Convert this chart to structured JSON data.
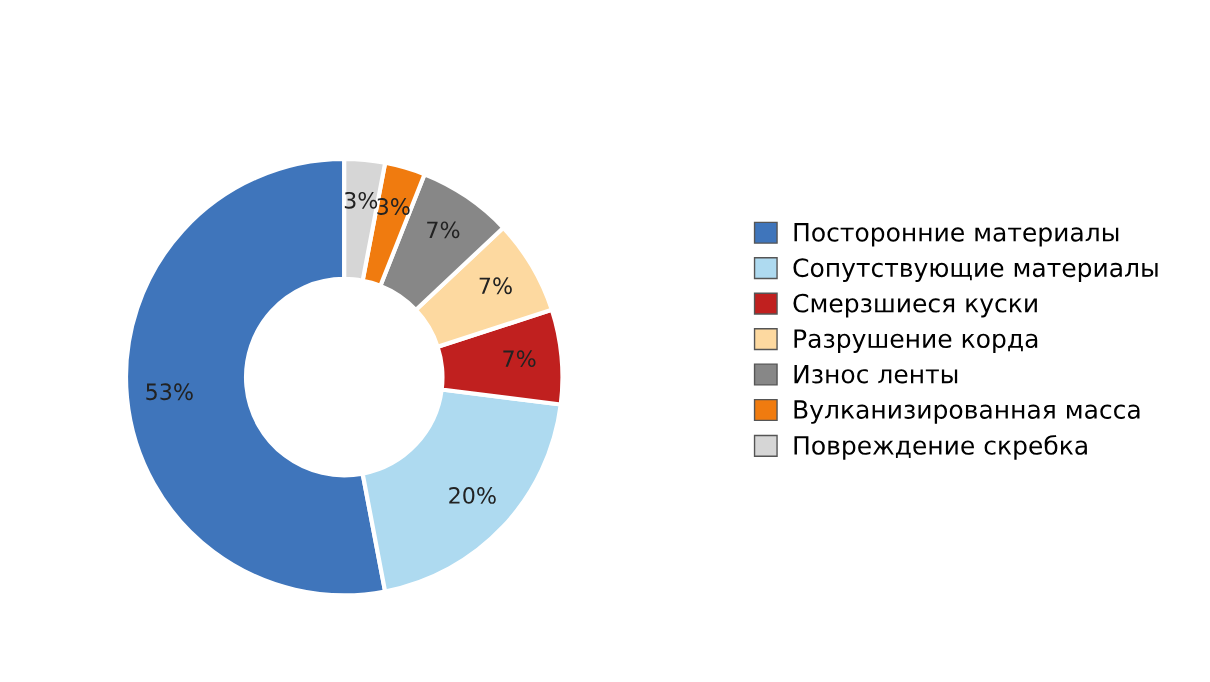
{
  "chart_data": {
    "type": "donut",
    "categories": [
      "Посторонние материалы",
      "Сопутствующие материалы",
      "Смерзшиеся куски",
      "Разрушение корда",
      "Износ ленты",
      "Вулканизированная масса",
      "Повреждение скребка"
    ],
    "values": [
      53,
      20,
      7,
      7,
      7,
      3,
      3
    ],
    "colors": [
      "#3f75bb",
      "#aedaf0",
      "#c0201f",
      "#fdd9a0",
      "#878787",
      "#f07b0f",
      "#d6d6d6"
    ],
    "value_labels": [
      "53%",
      "20%",
      "7%",
      "7%",
      "7%",
      "3%",
      "3%"
    ],
    "legend": "right"
  }
}
